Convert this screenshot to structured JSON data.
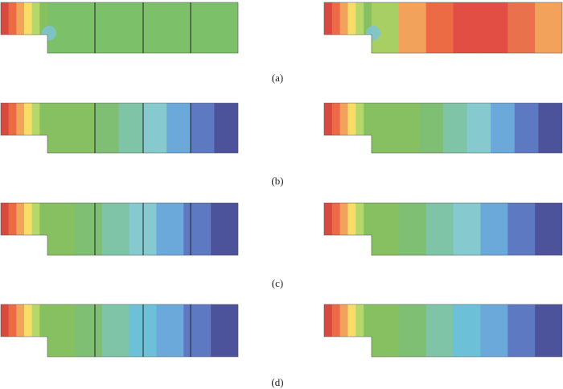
{
  "panels": [
    {
      "id": "a",
      "caption": "(a)",
      "left_bands": [
        "#d64a3f",
        "#ec6a44",
        "#f3a25c",
        "#f7dd66",
        "#b6d76a",
        "#86c061",
        "#7cc06a"
      ],
      "left_right_bands": [
        "#78be5e",
        "#a8cf64",
        "#f3a25c",
        "#ec6a44",
        "#e24d44",
        "#e24d44",
        "#e24d44",
        "#e9714c",
        "#f3a25c"
      ],
      "right_bands": [
        "#d64a3f",
        "#ec6a44",
        "#f3a25c",
        "#f7dd66",
        "#b6d76a",
        "#86c061",
        "#a8cf64",
        "#f3a25c",
        "#ec6a44",
        "#e24d44",
        "#e24d44",
        "#e9714c",
        "#f3a25c"
      ],
      "hotspot": "#7ec3d6"
    },
    {
      "id": "b",
      "caption": "(b)",
      "left_bands": [
        "#d64a3f",
        "#ec6a44",
        "#f3a25c",
        "#f7dd66",
        "#b6d76a",
        "#86c061",
        "#86c061",
        "#86c061",
        "#7fbf74",
        "#7fc4a6",
        "#86c9cf",
        "#6aa9da",
        "#5d79c2",
        "#4d539b"
      ],
      "right_bands": [
        "#d64a3f",
        "#ec6a44",
        "#f3a25c",
        "#f7dd66",
        "#b6d76a",
        "#86c061",
        "#86c061",
        "#86c061",
        "#7fbf74",
        "#7fc4a6",
        "#86c9cf",
        "#6aa9da",
        "#5d79c2",
        "#4d539b"
      ]
    },
    {
      "id": "c",
      "caption": "(c)",
      "left_bands": [
        "#d64a3f",
        "#ec6a44",
        "#f3a25c",
        "#f7dd66",
        "#b6d76a",
        "#86c061",
        "#86c061",
        "#7fbf74",
        "#7fc4a6",
        "#86c9cf",
        "#6aa9da",
        "#5d79c2",
        "#4d539b"
      ],
      "right_bands": [
        "#d64a3f",
        "#ec6a44",
        "#f3a25c",
        "#f7dd66",
        "#b6d76a",
        "#86c061",
        "#86c061",
        "#7fbf74",
        "#7fc4a6",
        "#86c9cf",
        "#6aa9da",
        "#5d79c2",
        "#4d539b"
      ]
    },
    {
      "id": "d",
      "caption": "(d)",
      "left_bands": [
        "#d64a3f",
        "#ec6a44",
        "#f3a25c",
        "#f7dd66",
        "#b6d76a",
        "#86c061",
        "#86c061",
        "#7fbf74",
        "#7fc4a6",
        "#6cc0d8",
        "#6aa9da",
        "#5d79c2",
        "#4d539b"
      ],
      "right_bands": [
        "#d64a3f",
        "#ec6a44",
        "#f3a25c",
        "#f7dd66",
        "#b6d76a",
        "#86c061",
        "#86c061",
        "#7fbf74",
        "#7fc4a6",
        "#6cc0d8",
        "#6aa9da",
        "#5d79c2",
        "#4d539b"
      ]
    }
  ]
}
